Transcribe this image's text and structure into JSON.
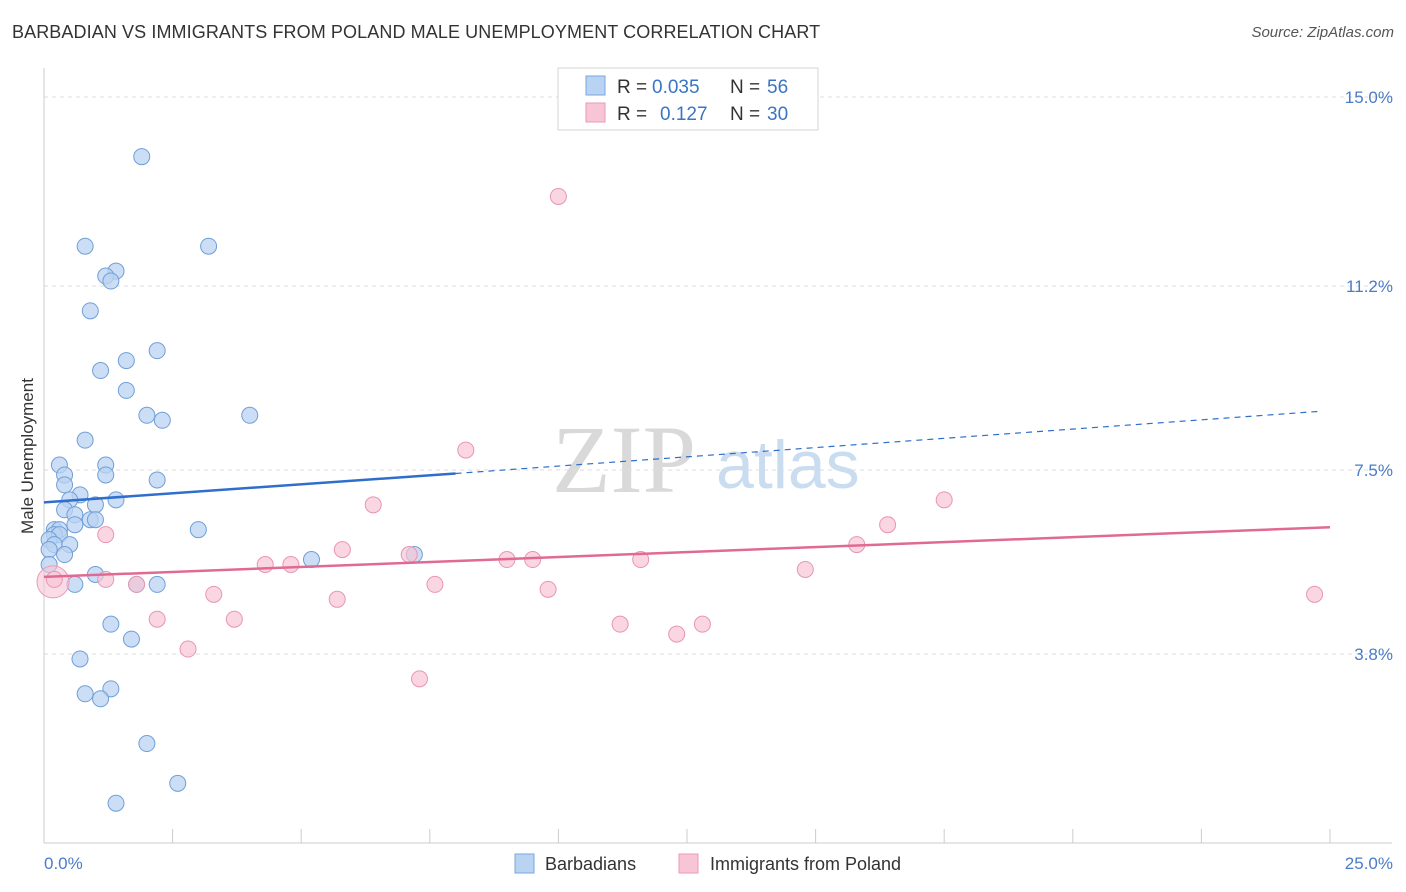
{
  "title": "BARBADIAN VS IMMIGRANTS FROM POLAND MALE UNEMPLOYMENT CORRELATION CHART",
  "source": "Source: ZipAtlas.com",
  "watermark": {
    "zip": "ZIP",
    "atlas": "atlas"
  },
  "colors": {
    "blue": "#4a7cc7",
    "blue_fill": "#b9d3f2",
    "blue_line": "#2f6fcc",
    "pink": "#e8769a",
    "pink_fill": "#f7c5d5",
    "pink_line": "#e06a94"
  },
  "legend": {
    "rows": [
      {
        "r_label": "R =",
        "r_value": "0.035",
        "n_label": "N =",
        "n_value": "56"
      },
      {
        "r_label": "R =",
        "r_value": "0.127",
        "n_label": "N =",
        "n_value": "30"
      }
    ]
  },
  "bottom_legend": [
    "Barbadians",
    "Immigrants from Poland"
  ],
  "chart_data": {
    "type": "scatter",
    "title": "BARBADIAN VS IMMIGRANTS FROM POLAND MALE UNEMPLOYMENT CORRELATION CHART",
    "xlabel": "",
    "ylabel": "Male Unemployment",
    "xlim": [
      0,
      25
    ],
    "ylim": [
      0,
      15.5
    ],
    "x_tick_labels": [
      "0.0%",
      "25.0%"
    ],
    "y_ticks": [
      3.8,
      7.5,
      11.2,
      15.0
    ],
    "y_tick_labels": [
      "3.8%",
      "7.5%",
      "11.2%",
      "15.0%"
    ],
    "series": [
      {
        "name": "Barbadians",
        "r": 0.035,
        "n": 56,
        "trend": {
          "x0": 0.0,
          "y0": 6.85,
          "x1": 8.0,
          "y1": 7.43,
          "x_dash_end": 24.8,
          "y_dash_end": 8.68
        },
        "points": [
          [
            1.9,
            13.8
          ],
          [
            0.8,
            12.0
          ],
          [
            3.2,
            12.0
          ],
          [
            1.4,
            11.5
          ],
          [
            1.2,
            11.4
          ],
          [
            1.3,
            11.3
          ],
          [
            0.9,
            10.7
          ],
          [
            2.2,
            9.9
          ],
          [
            1.6,
            9.7
          ],
          [
            1.1,
            9.5
          ],
          [
            1.6,
            9.1
          ],
          [
            2.0,
            8.6
          ],
          [
            2.3,
            8.5
          ],
          [
            4.0,
            8.6
          ],
          [
            0.8,
            8.1
          ],
          [
            0.3,
            7.6
          ],
          [
            1.2,
            7.6
          ],
          [
            1.2,
            7.4
          ],
          [
            0.4,
            7.4
          ],
          [
            2.2,
            7.3
          ],
          [
            0.4,
            7.2
          ],
          [
            0.7,
            7.0
          ],
          [
            1.4,
            6.9
          ],
          [
            0.5,
            6.9
          ],
          [
            1.0,
            6.8
          ],
          [
            0.4,
            6.7
          ],
          [
            0.6,
            6.6
          ],
          [
            0.9,
            6.5
          ],
          [
            1.0,
            6.5
          ],
          [
            0.6,
            6.4
          ],
          [
            0.2,
            6.3
          ],
          [
            0.3,
            6.3
          ],
          [
            0.2,
            6.2
          ],
          [
            0.3,
            6.2
          ],
          [
            3.0,
            6.3
          ],
          [
            0.1,
            6.1
          ],
          [
            0.2,
            6.0
          ],
          [
            0.5,
            6.0
          ],
          [
            0.1,
            5.9
          ],
          [
            0.4,
            5.8
          ],
          [
            7.2,
            5.8
          ],
          [
            5.2,
            5.7
          ],
          [
            0.1,
            5.6
          ],
          [
            1.0,
            5.4
          ],
          [
            1.8,
            5.2
          ],
          [
            2.2,
            5.2
          ],
          [
            0.6,
            5.2
          ],
          [
            1.3,
            4.4
          ],
          [
            1.7,
            4.1
          ],
          [
            0.7,
            3.7
          ],
          [
            1.3,
            3.1
          ],
          [
            0.8,
            3.0
          ],
          [
            1.1,
            2.9
          ],
          [
            2.0,
            2.0
          ],
          [
            2.6,
            1.2
          ],
          [
            1.4,
            0.8
          ]
        ]
      },
      {
        "name": "Immigrants from Poland",
        "r": 0.127,
        "n": 30,
        "trend": {
          "x0": 0.0,
          "y0": 5.35,
          "x1": 25.0,
          "y1": 6.35
        },
        "points": [
          [
            10.0,
            13.0
          ],
          [
            8.2,
            7.9
          ],
          [
            17.5,
            6.9
          ],
          [
            6.4,
            6.8
          ],
          [
            16.4,
            6.4
          ],
          [
            1.2,
            6.2
          ],
          [
            15.8,
            6.0
          ],
          [
            5.8,
            5.9
          ],
          [
            7.1,
            5.8
          ],
          [
            9.5,
            5.7
          ],
          [
            9.0,
            5.7
          ],
          [
            11.6,
            5.7
          ],
          [
            4.3,
            5.6
          ],
          [
            4.8,
            5.6
          ],
          [
            14.8,
            5.5
          ],
          [
            0.2,
            5.3
          ],
          [
            1.2,
            5.3
          ],
          [
            7.6,
            5.2
          ],
          [
            1.8,
            5.2
          ],
          [
            9.8,
            5.1
          ],
          [
            3.3,
            5.0
          ],
          [
            24.7,
            5.0
          ],
          [
            5.7,
            4.9
          ],
          [
            2.2,
            4.5
          ],
          [
            3.7,
            4.5
          ],
          [
            11.2,
            4.4
          ],
          [
            12.8,
            4.4
          ],
          [
            12.3,
            4.2
          ],
          [
            2.8,
            3.9
          ],
          [
            7.3,
            3.3
          ]
        ]
      }
    ]
  }
}
